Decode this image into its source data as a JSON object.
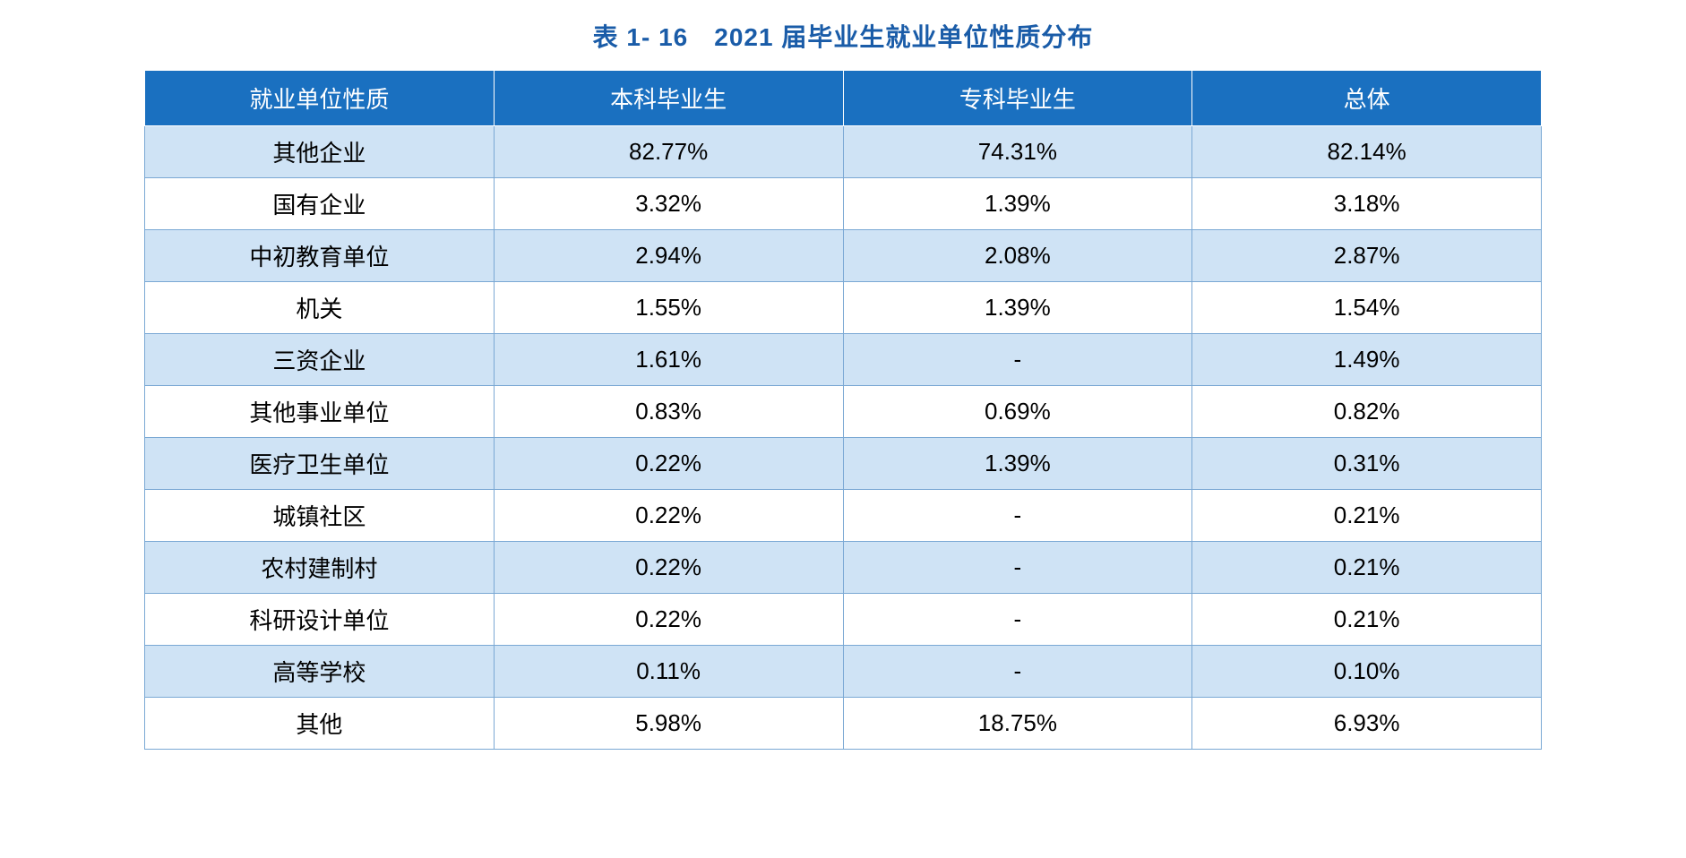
{
  "title": "表 1- 16　2021 届毕业生就业单位性质分布",
  "table": {
    "type": "table",
    "header_bg": "#1a70c0",
    "header_color": "#ffffff",
    "row_odd_bg": "#cfe3f5",
    "row_even_bg": "#ffffff",
    "border_color": "#7aa8d4",
    "title_color": "#1a5ca8",
    "title_fontsize": 28,
    "cell_fontsize": 26,
    "columns": [
      "就业单位性质",
      "本科毕业生",
      "专科毕业生",
      "总体"
    ],
    "column_widths": [
      "25%",
      "25%",
      "25%",
      "25%"
    ],
    "rows": [
      [
        "其他企业",
        "82.77%",
        "74.31%",
        "82.14%"
      ],
      [
        "国有企业",
        "3.32%",
        "1.39%",
        "3.18%"
      ],
      [
        "中初教育单位",
        "2.94%",
        "2.08%",
        "2.87%"
      ],
      [
        "机关",
        "1.55%",
        "1.39%",
        "1.54%"
      ],
      [
        "三资企业",
        "1.61%",
        "-",
        "1.49%"
      ],
      [
        "其他事业单位",
        "0.83%",
        "0.69%",
        "0.82%"
      ],
      [
        "医疗卫生单位",
        "0.22%",
        "1.39%",
        "0.31%"
      ],
      [
        "城镇社区",
        "0.22%",
        "-",
        "0.21%"
      ],
      [
        "农村建制村",
        "0.22%",
        "-",
        "0.21%"
      ],
      [
        "科研设计单位",
        "0.22%",
        "-",
        "0.21%"
      ],
      [
        "高等学校",
        "0.11%",
        "-",
        "0.10%"
      ],
      [
        "其他",
        "5.98%",
        "18.75%",
        "6.93%"
      ]
    ]
  }
}
